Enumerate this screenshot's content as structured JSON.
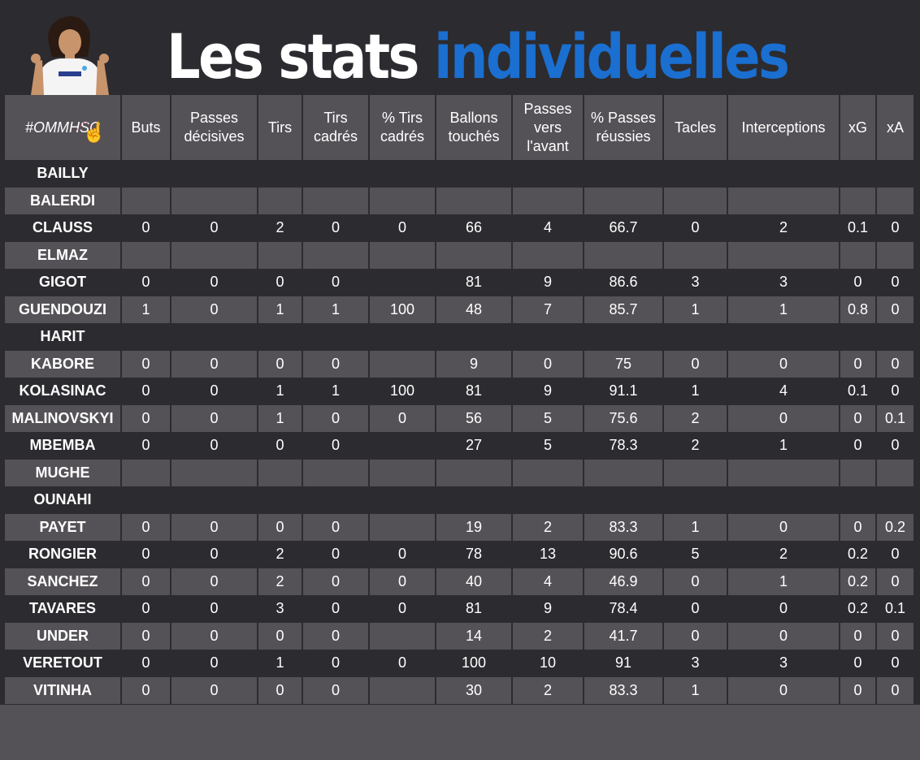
{
  "title": {
    "part1": "Les stats",
    "part2": "individuelles"
  },
  "colors": {
    "background_dark": "#2c2b2f",
    "row_alt": "#545256",
    "accent_blue": "#1a6fd0",
    "text": "#ffffff"
  },
  "columns": [
    "#OMMHSC",
    "Buts",
    "Passes décisives",
    "Tirs",
    "Tirs cadrés",
    "% Tirs cadrés",
    "Ballons touchés",
    "Passes vers l'avant",
    "% Passes réussies",
    "Tacles",
    "Interceptions",
    "xG",
    "xA"
  ],
  "rows": [
    {
      "name": "BAILLY",
      "values": [
        "",
        "",
        "",
        "",
        "",
        "",
        "",
        "",
        "",
        "",
        "",
        ""
      ]
    },
    {
      "name": "BALERDI",
      "values": [
        "",
        "",
        "",
        "",
        "",
        "",
        "",
        "",
        "",
        "",
        "",
        ""
      ]
    },
    {
      "name": "CLAUSS",
      "values": [
        "0",
        "0",
        "2",
        "0",
        "0",
        "66",
        "4",
        "66.7",
        "0",
        "2",
        "0.1",
        "0"
      ]
    },
    {
      "name": "ELMAZ",
      "values": [
        "",
        "",
        "",
        "",
        "",
        "",
        "",
        "",
        "",
        "",
        "",
        ""
      ]
    },
    {
      "name": "GIGOT",
      "values": [
        "0",
        "0",
        "0",
        "0",
        "",
        "81",
        "9",
        "86.6",
        "3",
        "3",
        "0",
        "0"
      ]
    },
    {
      "name": "GUENDOUZI",
      "values": [
        "1",
        "0",
        "1",
        "1",
        "100",
        "48",
        "7",
        "85.7",
        "1",
        "1",
        "0.8",
        "0"
      ]
    },
    {
      "name": "HARIT",
      "values": [
        "",
        "",
        "",
        "",
        "",
        "",
        "",
        "",
        "",
        "",
        "",
        ""
      ]
    },
    {
      "name": "KABORE",
      "values": [
        "0",
        "0",
        "0",
        "0",
        "",
        "9",
        "0",
        "75",
        "0",
        "0",
        "0",
        "0"
      ]
    },
    {
      "name": "KOLASINAC",
      "values": [
        "0",
        "0",
        "1",
        "1",
        "100",
        "81",
        "9",
        "91.1",
        "1",
        "4",
        "0.1",
        "0"
      ]
    },
    {
      "name": "MALINOVSKYI",
      "values": [
        "0",
        "0",
        "1",
        "0",
        "0",
        "56",
        "5",
        "75.6",
        "2",
        "0",
        "0",
        "0.1"
      ]
    },
    {
      "name": "MBEMBA",
      "values": [
        "0",
        "0",
        "0",
        "0",
        "",
        "27",
        "5",
        "78.3",
        "2",
        "1",
        "0",
        "0"
      ]
    },
    {
      "name": "MUGHE",
      "values": [
        "",
        "",
        "",
        "",
        "",
        "",
        "",
        "",
        "",
        "",
        "",
        ""
      ]
    },
    {
      "name": "OUNAHI",
      "values": [
        "",
        "",
        "",
        "",
        "",
        "",
        "",
        "",
        "",
        "",
        "",
        ""
      ]
    },
    {
      "name": "PAYET",
      "values": [
        "0",
        "0",
        "0",
        "0",
        "",
        "19",
        "2",
        "83.3",
        "1",
        "0",
        "0",
        "0.2"
      ]
    },
    {
      "name": "RONGIER",
      "values": [
        "0",
        "0",
        "2",
        "0",
        "0",
        "78",
        "13",
        "90.6",
        "5",
        "2",
        "0.2",
        "0"
      ]
    },
    {
      "name": "SANCHEZ",
      "values": [
        "0",
        "0",
        "2",
        "0",
        "0",
        "40",
        "4",
        "46.9",
        "0",
        "1",
        "0.2",
        "0"
      ]
    },
    {
      "name": "TAVARES",
      "values": [
        "0",
        "0",
        "3",
        "0",
        "0",
        "81",
        "9",
        "78.4",
        "0",
        "0",
        "0.2",
        "0.1"
      ]
    },
    {
      "name": "UNDER",
      "values": [
        "0",
        "0",
        "0",
        "0",
        "",
        "14",
        "2",
        "41.7",
        "0",
        "0",
        "0",
        "0"
      ]
    },
    {
      "name": "VERETOUT",
      "values": [
        "0",
        "0",
        "1",
        "0",
        "0",
        "100",
        "10",
        "91",
        "3",
        "3",
        "0",
        "0"
      ]
    },
    {
      "name": "VITINHA",
      "values": [
        "0",
        "0",
        "0",
        "0",
        "",
        "30",
        "2",
        "83.3",
        "1",
        "0",
        "0",
        "0"
      ]
    }
  ]
}
